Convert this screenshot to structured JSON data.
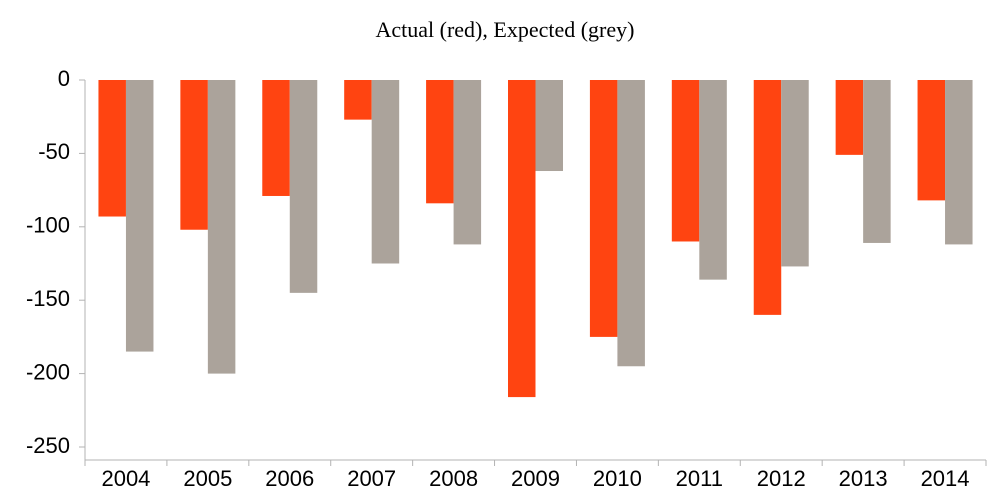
{
  "chart_data": {
    "type": "bar",
    "title": "Actual (red), Expected (grey)",
    "categories": [
      "2004",
      "2005",
      "2006",
      "2007",
      "2008",
      "2009",
      "2010",
      "2011",
      "2012",
      "2013",
      "2014"
    ],
    "series": [
      {
        "color": "#ff4411",
        "values": [
          -93,
          -102,
          -79,
          -27,
          -84,
          -216,
          -175,
          -110,
          -160,
          -51,
          -82
        ]
      },
      {
        "color": "#aba39b",
        "values": [
          -185,
          -200,
          -145,
          -125,
          -112,
          -62,
          -195,
          -136,
          -127,
          -111,
          -112
        ]
      }
    ],
    "ylim": [
      -259,
      0
    ],
    "yticks": [
      0,
      -50,
      -100,
      -150,
      -200,
      -250
    ],
    "grid": false
  }
}
